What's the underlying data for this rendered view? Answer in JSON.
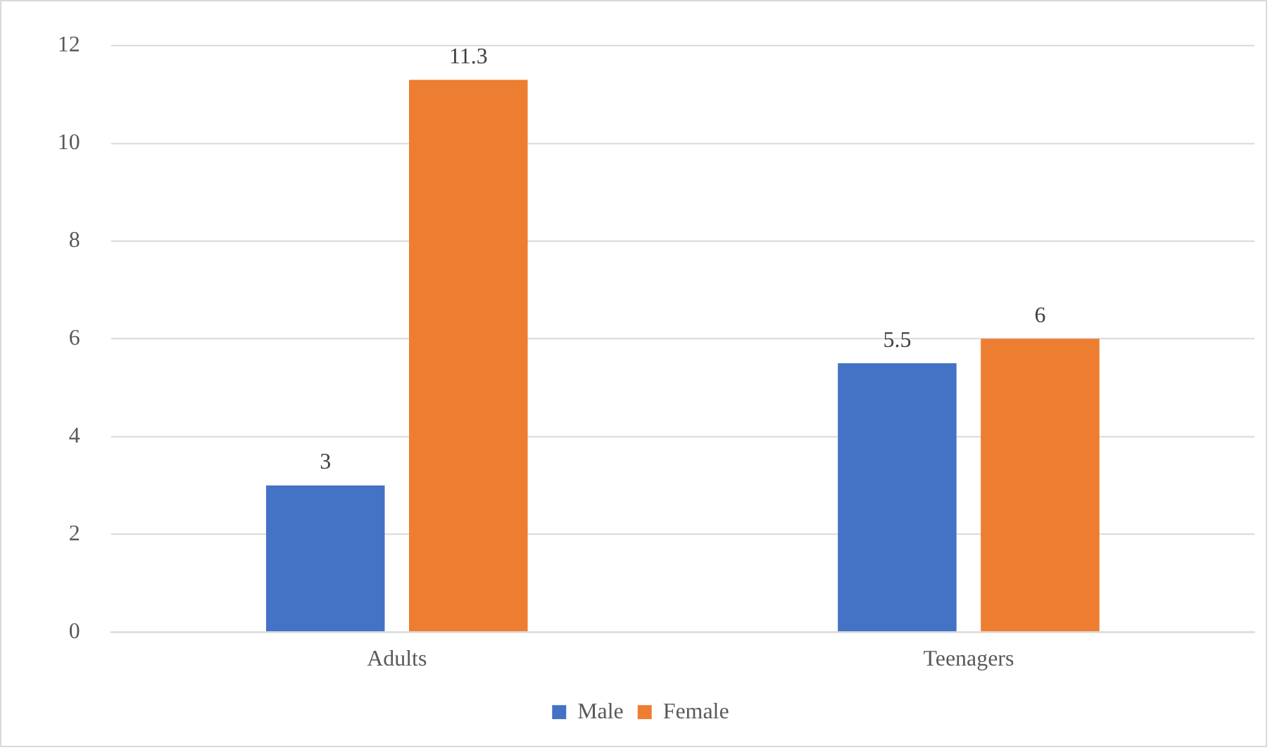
{
  "chart_data": {
    "type": "bar",
    "categories": [
      "Adults",
      "Teenagers"
    ],
    "series": [
      {
        "name": "Male",
        "color": "#4472c4",
        "values": [
          3,
          5.5
        ]
      },
      {
        "name": "Female",
        "color": "#ed7d31",
        "values": [
          11.3,
          6
        ]
      }
    ],
    "ylim": [
      0,
      12
    ],
    "yticks": [
      0,
      2,
      4,
      6,
      8,
      10,
      12
    ],
    "grid": "y",
    "legend": "bottom",
    "data_labels": true
  }
}
